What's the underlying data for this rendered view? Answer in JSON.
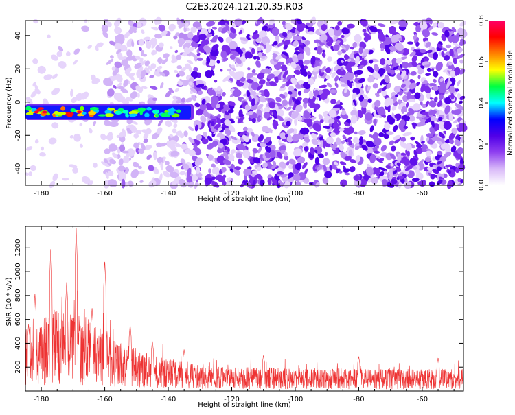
{
  "title": "C2E3.2024.121.20.35.R03",
  "chart_data": [
    {
      "type": "heatmap",
      "xlabel": "Height of straight line (km)",
      "ylabel": "Frequency (Hz)",
      "xlim": [
        -185,
        -47
      ],
      "ylim": [
        -50,
        49
      ],
      "x_ticks": [
        -180,
        -160,
        -140,
        -120,
        -100,
        -80,
        -60
      ],
      "y_ticks": [
        -40,
        -20,
        0,
        20,
        40
      ],
      "signal_band": {
        "x_range": [
          -185,
          -132
        ],
        "frequency_center": -6,
        "bandwidth": 8
      },
      "noise_region": {
        "x_range": [
          -132,
          -47
        ],
        "description_level": "dense"
      },
      "colorbar": {
        "label": "Normalized spectral amplitude",
        "range": [
          0.0,
          0.8
        ],
        "ticks": [
          "0.0",
          "0.2",
          "0.4",
          "0.6",
          "0.8"
        ],
        "colors": [
          "#ffffff",
          "#d8b8f8",
          "#9040f0",
          "#5000e8",
          "#0000ff",
          "#00ffff",
          "#00ff40",
          "#ffff00",
          "#ff8000",
          "#ff0000",
          "#ff0066"
        ]
      }
    },
    {
      "type": "line",
      "xlabel": "Height of straight line (km)",
      "ylabel": "SNR (10 * v/v)",
      "xlim": [
        -185,
        -47
      ],
      "ylim": [
        0,
        1380
      ],
      "x_ticks": [
        -180,
        -160,
        -140,
        -120,
        -100,
        -80,
        -60
      ],
      "y_ticks": [
        200,
        400,
        600,
        800,
        1000,
        1200
      ],
      "line_color": "#ee3333",
      "peaks": [
        {
          "x": -184,
          "y": 560
        },
        {
          "x": -182,
          "y": 820
        },
        {
          "x": -177,
          "y": 1210
        },
        {
          "x": -172,
          "y": 920
        },
        {
          "x": -169,
          "y": 1370
        },
        {
          "x": -164,
          "y": 700
        },
        {
          "x": -160,
          "y": 1100
        },
        {
          "x": -152,
          "y": 560
        },
        {
          "x": -145,
          "y": 420
        },
        {
          "x": -135,
          "y": 350
        },
        {
          "x": -110,
          "y": 300
        },
        {
          "x": -80,
          "y": 290
        },
        {
          "x": -55,
          "y": 280
        }
      ],
      "baseline_envelope": [
        {
          "x": -185,
          "mean": 280
        },
        {
          "x": -175,
          "mean": 380
        },
        {
          "x": -165,
          "mean": 330
        },
        {
          "x": -155,
          "mean": 230
        },
        {
          "x": -145,
          "mean": 160
        },
        {
          "x": -135,
          "mean": 140
        },
        {
          "x": -125,
          "mean": 110
        },
        {
          "x": -100,
          "mean": 105
        },
        {
          "x": -75,
          "mean": 100
        },
        {
          "x": -47,
          "mean": 100
        }
      ]
    }
  ]
}
